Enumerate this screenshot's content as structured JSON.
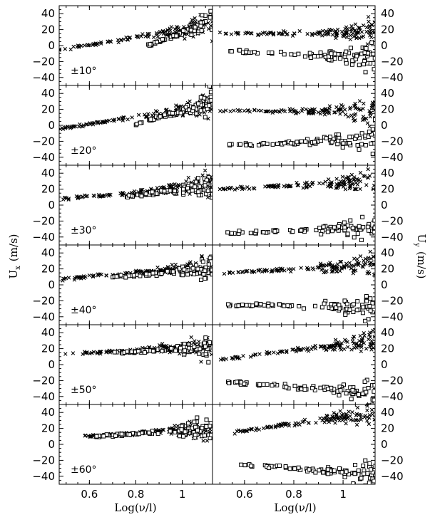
{
  "chart_data": {
    "type": "scatter",
    "xlabel": "Log(ν/l)",
    "ylabel_left": "U",
    "ylabel_left_sub": "x",
    "ylabel_left_unit": "(m/s)",
    "ylabel_right": "U",
    "ylabel_right_sub": "y",
    "ylabel_right_unit": "(m/s)",
    "xlim": [
      0.47,
      1.13
    ],
    "ylim": [
      -50,
      50
    ],
    "xticks": [
      0.6,
      0.8,
      1.0
    ],
    "xtick_labels": [
      "0.6",
      "0.8",
      "1"
    ],
    "yticks": [
      -40,
      -20,
      0,
      20,
      40
    ],
    "ytick_labels": [
      "−40",
      "−20",
      "0",
      "20",
      "40"
    ],
    "markers": {
      "cross": "×",
      "square": "□"
    },
    "rows": [
      {
        "label": "±10°",
        "left": {
          "cross": {
            "y0": -5,
            "y1": 25,
            "x0": 0.47
          },
          "square": {
            "y0": 0,
            "y1": 30,
            "x0": 0.85
          }
        },
        "right": {
          "cross": {
            "y0": 15,
            "y1": 16,
            "x0": 0.5
          },
          "square": {
            "y0": -7,
            "y1": -15,
            "x0": 0.53
          }
        }
      },
      {
        "label": "±20°",
        "left": {
          "cross": {
            "y0": -4,
            "y1": 25,
            "x0": 0.47
          },
          "square": {
            "y0": 2,
            "y1": 28,
            "x0": 0.8
          }
        },
        "right": {
          "cross": {
            "y0": 18,
            "y1": 18,
            "x0": 0.5
          },
          "square": {
            "y0": -25,
            "y1": -18,
            "x0": 0.53
          }
        }
      },
      {
        "label": "±30°",
        "left": {
          "cross": {
            "y0": 7,
            "y1": 26,
            "x0": 0.47
          },
          "square": {
            "y0": 10,
            "y1": 25,
            "x0": 0.75
          }
        },
        "right": {
          "cross": {
            "y0": 20,
            "y1": 30,
            "x0": 0.5
          },
          "square": {
            "y0": -35,
            "y1": -28,
            "x0": 0.53
          }
        }
      },
      {
        "label": "±40°",
        "left": {
          "cross": {
            "y0": 7,
            "y1": 24,
            "x0": 0.47
          },
          "square": {
            "y0": 10,
            "y1": 20,
            "x0": 0.7
          }
        },
        "right": {
          "cross": {
            "y0": 15,
            "y1": 25,
            "x0": 0.5
          },
          "square": {
            "y0": -25,
            "y1": -28,
            "x0": 0.53
          }
        }
      },
      {
        "label": "±50°",
        "left": {
          "cross": {
            "y0": 12,
            "y1": 24,
            "x0": 0.47
          },
          "square": {
            "y0": 15,
            "y1": 22,
            "x0": 0.7
          }
        },
        "right": {
          "cross": {
            "y0": 7,
            "y1": 30,
            "x0": 0.5
          },
          "square": {
            "y0": -22,
            "y1": -35,
            "x0": 0.53
          }
        }
      },
      {
        "label": "±60°",
        "left": {
          "cross": {
            "y0": 10,
            "y1": 20,
            "x0": 0.58
          },
          "square": {
            "y0": 10,
            "y1": 20,
            "x0": 0.62
          }
        },
        "right": {
          "cross": {
            "y0": 15,
            "y1": 40,
            "x0": 0.55
          },
          "square": {
            "y0": -25,
            "y1": -38,
            "x0": 0.58
          }
        }
      }
    ]
  }
}
